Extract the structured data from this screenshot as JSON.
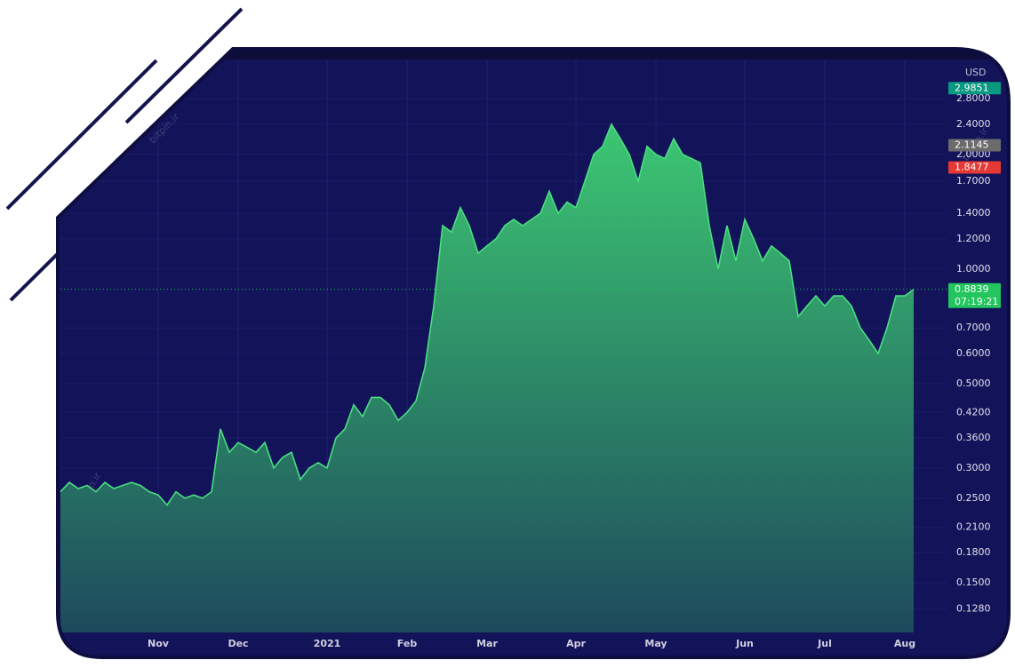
{
  "chart_data": {
    "type": "area",
    "currency": "USD",
    "watermark": "bitpin.ir",
    "categories": [
      null,
      null,
      null,
      null,
      null,
      null,
      null,
      null,
      null,
      null,
      null,
      "Nov",
      null,
      null,
      null,
      null,
      null,
      null,
      null,
      null,
      "Dec",
      null,
      null,
      null,
      null,
      null,
      null,
      null,
      null,
      null,
      "2021",
      null,
      null,
      null,
      null,
      null,
      null,
      null,
      null,
      "Feb",
      null,
      null,
      null,
      null,
      null,
      null,
      null,
      null,
      "Mar",
      null,
      null,
      null,
      null,
      null,
      null,
      null,
      null,
      null,
      "Apr",
      null,
      null,
      null,
      null,
      null,
      null,
      null,
      null,
      "May",
      null,
      null,
      null,
      null,
      null,
      null,
      null,
      null,
      null,
      "Jun",
      null,
      null,
      null,
      null,
      null,
      null,
      null,
      null,
      "Jul",
      null,
      null,
      null,
      null,
      null,
      null,
      null,
      null,
      "Aug",
      null
    ],
    "series": [
      {
        "color": "#4ade80",
        "fill_top": "#3cc772",
        "fill_bottom": "#1d4a5c",
        "values": [
          0.26,
          0.275,
          0.265,
          0.27,
          0.26,
          0.275,
          0.265,
          0.27,
          0.275,
          0.27,
          0.26,
          0.255,
          0.24,
          0.26,
          0.25,
          0.255,
          0.25,
          0.26,
          0.38,
          0.33,
          0.35,
          0.34,
          0.33,
          0.35,
          0.3,
          0.32,
          0.33,
          0.28,
          0.3,
          0.31,
          0.3,
          0.36,
          0.38,
          0.44,
          0.41,
          0.46,
          0.46,
          0.44,
          0.4,
          0.42,
          0.45,
          0.55,
          0.8,
          1.3,
          1.25,
          1.45,
          1.3,
          1.1,
          1.15,
          1.2,
          1.3,
          1.35,
          1.3,
          1.35,
          1.4,
          1.6,
          1.4,
          1.5,
          1.45,
          1.7,
          2.0,
          2.1,
          2.4,
          2.2,
          2.0,
          1.7,
          2.1,
          2.0,
          1.95,
          2.2,
          2.0,
          1.95,
          1.9,
          1.3,
          1.0,
          1.3,
          1.05,
          1.35,
          1.2,
          1.05,
          1.15,
          1.1,
          1.05,
          0.75,
          0.8,
          0.85,
          0.8,
          0.85,
          0.85,
          0.8,
          0.7,
          0.65,
          0.6,
          0.7,
          0.85,
          0.85,
          0.8839
        ]
      }
    ],
    "log_scale": true,
    "ylim": [
      0.111,
      3.55
    ],
    "yticks": [
      {
        "value": 0.128,
        "label": "0.1280"
      },
      {
        "value": 0.15,
        "label": "0.1500"
      },
      {
        "value": 0.18,
        "label": "0.1800"
      },
      {
        "value": 0.21,
        "label": "0.2100"
      },
      {
        "value": 0.25,
        "label": "0.2500"
      },
      {
        "value": 0.3,
        "label": "0.3000"
      },
      {
        "value": 0.36,
        "label": "0.3600"
      },
      {
        "value": 0.42,
        "label": "0.4200"
      },
      {
        "value": 0.5,
        "label": "0.5000"
      },
      {
        "value": 0.6,
        "label": "0.6000"
      },
      {
        "value": 0.7,
        "label": "0.7000"
      },
      {
        "value": 1.0,
        "label": "1.0000"
      },
      {
        "value": 1.2,
        "label": "1.2000"
      },
      {
        "value": 1.4,
        "label": "1.4000"
      },
      {
        "value": 1.7,
        "label": "1.7000"
      },
      {
        "value": 2.0,
        "label": "2.0000"
      },
      {
        "value": 2.4,
        "label": "2.4000"
      },
      {
        "value": 2.8,
        "label": "2.8000"
      }
    ],
    "grid": true,
    "markers": [
      {
        "value": 2.9851,
        "color": "#089981"
      },
      {
        "value": 2.1145,
        "color": "#6b6b6b"
      },
      {
        "value": 1.8477,
        "color": "#e53935"
      },
      {
        "value": 0.8839,
        "color": "#22c55e"
      }
    ],
    "countdown": "07:19:21"
  }
}
